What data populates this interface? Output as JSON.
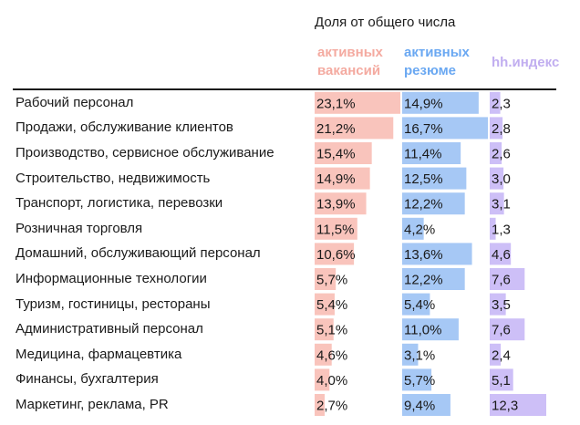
{
  "header": {
    "title": "Доля от общего числа",
    "col_vacancies": "активных\nвакансий",
    "col_resumes": "активных\nрезюме",
    "col_hh": "hh.индекс"
  },
  "colors": {
    "vacancies": "#f9c4bc",
    "resumes": "#a6c8f5",
    "hh": "#cdbff7",
    "vacancies_header": "#f4aaa0",
    "resumes_header": "#6aa8f2",
    "hh_header": "#c1aef0"
  },
  "chart_data": {
    "type": "table",
    "categories": [
      "Рабочий персонал",
      "Продажи, обслуживание клиентов",
      "Производство, сервисное обслуживание",
      "Строительство, недвижимость",
      "Транспорт, логистика, перевозки",
      "Розничная торговля",
      "Домашний, обслуживающий персонал",
      "Информационные технологии",
      "Туризм, гостиницы, рестораны",
      "Административный персонал",
      "Медицина, фармацевтика",
      "Финансы, бухгалтерия",
      "Маркетинг, реклама, PR"
    ],
    "series": [
      {
        "name": "активных вакансий",
        "values": [
          23.1,
          21.2,
          15.4,
          14.9,
          13.9,
          11.5,
          10.6,
          5.7,
          5.4,
          5.1,
          4.6,
          4.0,
          2.7
        ],
        "labels": [
          "23,1%",
          "21,2%",
          "15,4%",
          "14,9%",
          "13,9%",
          "11,5%",
          "10,6%",
          "5,7%",
          "5,4%",
          "5,1%",
          "4,6%",
          "4,0%",
          "2,7%"
        ]
      },
      {
        "name": "активных резюме",
        "values": [
          14.9,
          16.7,
          11.4,
          12.5,
          12.2,
          4.2,
          13.6,
          12.2,
          5.4,
          11.0,
          3.1,
          5.7,
          9.4
        ],
        "labels": [
          "14,9%",
          "16,7%",
          "11,4%",
          "12,5%",
          "12,2%",
          "4,2%",
          "13,6%",
          "12,2%",
          "5,4%",
          "11,0%",
          "3,1%",
          "5,7%",
          "9,4%"
        ]
      },
      {
        "name": "hh.индекс",
        "values": [
          2.3,
          2.8,
          2.6,
          3.0,
          3.1,
          1.3,
          4.6,
          7.6,
          3.5,
          7.6,
          2.4,
          5.1,
          12.3
        ],
        "labels": [
          "2,3",
          "2,8",
          "2,6",
          "3,0",
          "3,1",
          "1,3",
          "4,6",
          "7,6",
          "3,5",
          "7,6",
          "2,4",
          "5,1",
          "12,3"
        ]
      }
    ]
  }
}
